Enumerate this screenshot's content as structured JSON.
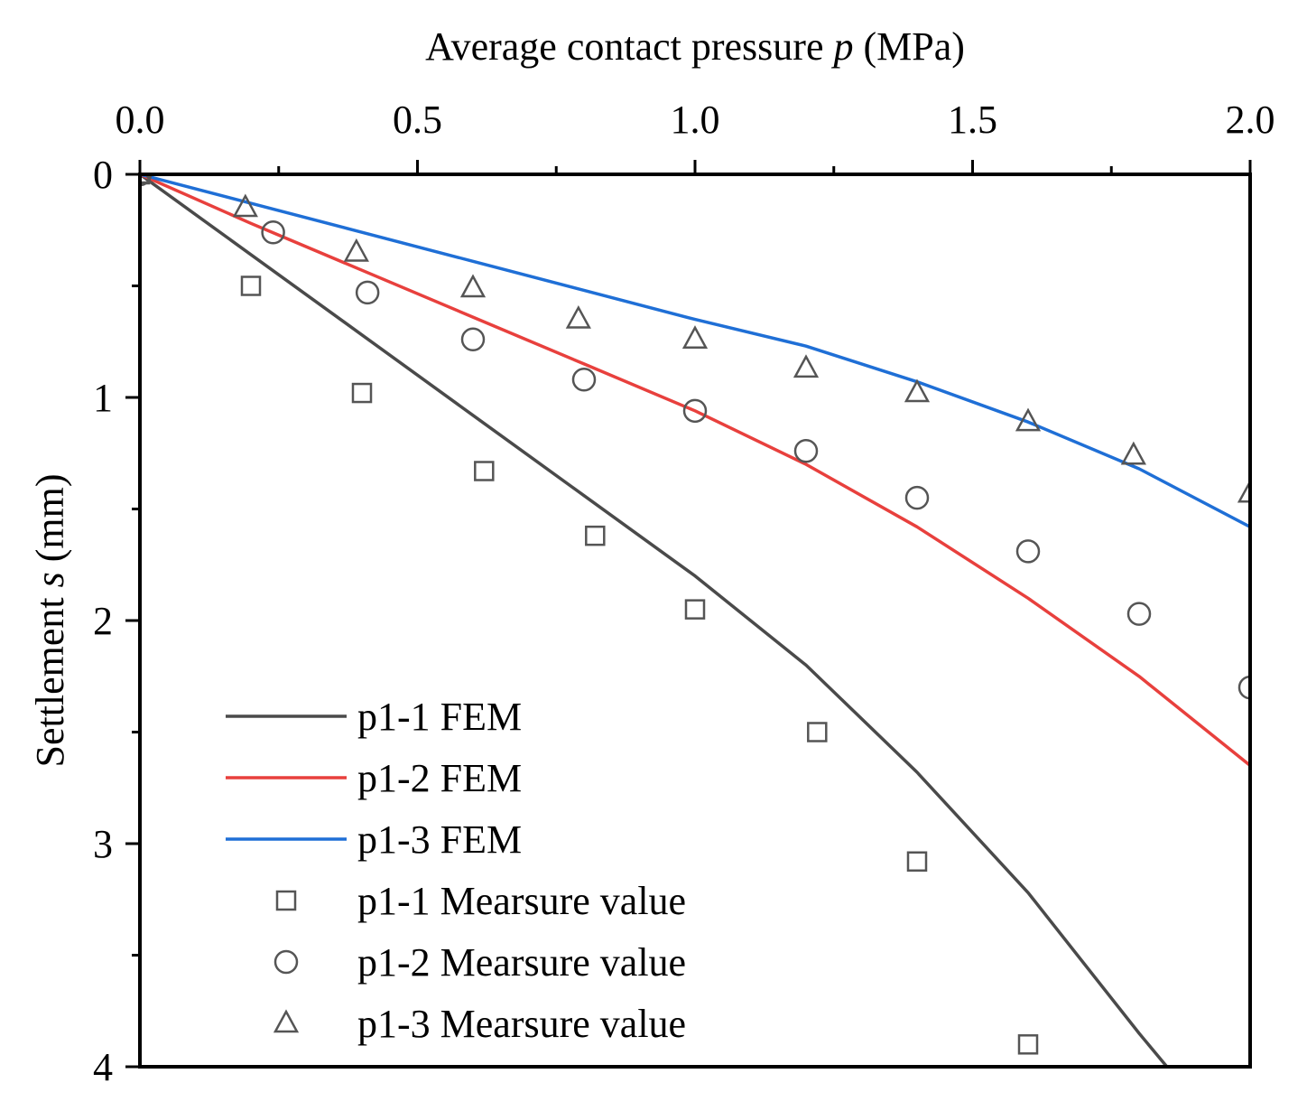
{
  "chart_data": {
    "type": "line",
    "title": "",
    "xlabel": {
      "prefix": "Average contact pressure ",
      "var": "p",
      "suffix": " (MPa)"
    },
    "ylabel": {
      "prefix": "Settlement ",
      "var": "s",
      "suffix": " (mm)"
    },
    "xlim": [
      0,
      2.0
    ],
    "ylim": [
      0,
      4
    ],
    "y_inverted": true,
    "x_axis_position": "top",
    "x_ticks": [
      "0.0",
      "0.5",
      "1.0",
      "1.5",
      "2.0"
    ],
    "x_tick_values": [
      0,
      0.5,
      1.0,
      1.5,
      2.0
    ],
    "x_minor_ticks": [
      0.25,
      0.75,
      1.25,
      1.75
    ],
    "y_ticks": [
      "0",
      "1",
      "2",
      "3",
      "4"
    ],
    "y_tick_values": [
      0,
      1,
      2,
      3,
      4
    ],
    "y_minor_ticks": [
      0.5,
      1.5,
      2.5,
      3.5
    ],
    "grid": false,
    "legend_position": "bottom-left",
    "series": [
      {
        "name": "p1-1 FEM",
        "kind": "line",
        "color": "#4a4a4a",
        "x": [
          0,
          0.2,
          0.4,
          0.6,
          0.8,
          1.0,
          1.2,
          1.4,
          1.6,
          1.8,
          1.85
        ],
        "y": [
          0,
          0.36,
          0.72,
          1.08,
          1.44,
          1.8,
          2.2,
          2.68,
          3.22,
          3.85,
          4.0
        ]
      },
      {
        "name": "p1-2 FEM",
        "kind": "line",
        "color": "#e8403d",
        "x": [
          0,
          0.2,
          0.4,
          0.6,
          0.8,
          1.0,
          1.2,
          1.4,
          1.6,
          1.8,
          2.0
        ],
        "y": [
          0,
          0.22,
          0.43,
          0.64,
          0.85,
          1.06,
          1.3,
          1.58,
          1.9,
          2.25,
          2.65
        ]
      },
      {
        "name": "p1-3 FEM",
        "kind": "line",
        "color": "#1f6fd6",
        "x": [
          0,
          0.2,
          0.4,
          0.6,
          0.8,
          1.0,
          1.2,
          1.4,
          1.6,
          1.8,
          2.0
        ],
        "y": [
          0,
          0.13,
          0.26,
          0.39,
          0.52,
          0.65,
          0.77,
          0.93,
          1.11,
          1.32,
          1.58
        ]
      },
      {
        "name": "p1-1 Mearsure value",
        "kind": "scatter",
        "marker": "square",
        "color": "#555555",
        "x": [
          0,
          0.2,
          0.4,
          0.62,
          0.82,
          1.0,
          1.22,
          1.4,
          1.6
        ],
        "y": [
          0,
          0.5,
          0.98,
          1.33,
          1.62,
          1.95,
          2.5,
          3.08,
          3.9
        ]
      },
      {
        "name": "p1-2 Mearsure value",
        "kind": "scatter",
        "marker": "circle",
        "color": "#555555",
        "x": [
          0,
          0.24,
          0.41,
          0.6,
          0.8,
          1.0,
          1.2,
          1.4,
          1.6,
          1.8,
          2.0
        ],
        "y": [
          0,
          0.26,
          0.53,
          0.74,
          0.92,
          1.06,
          1.24,
          1.45,
          1.69,
          1.97,
          2.3
        ]
      },
      {
        "name": "p1-3 Mearsure value",
        "kind": "scatter",
        "marker": "triangle",
        "color": "#555555",
        "x": [
          0,
          0.19,
          0.39,
          0.6,
          0.79,
          1.0,
          1.2,
          1.4,
          1.6,
          1.79,
          2.0
        ],
        "y": [
          0,
          0.15,
          0.35,
          0.51,
          0.65,
          0.74,
          0.87,
          0.98,
          1.11,
          1.26,
          1.43
        ]
      }
    ]
  }
}
